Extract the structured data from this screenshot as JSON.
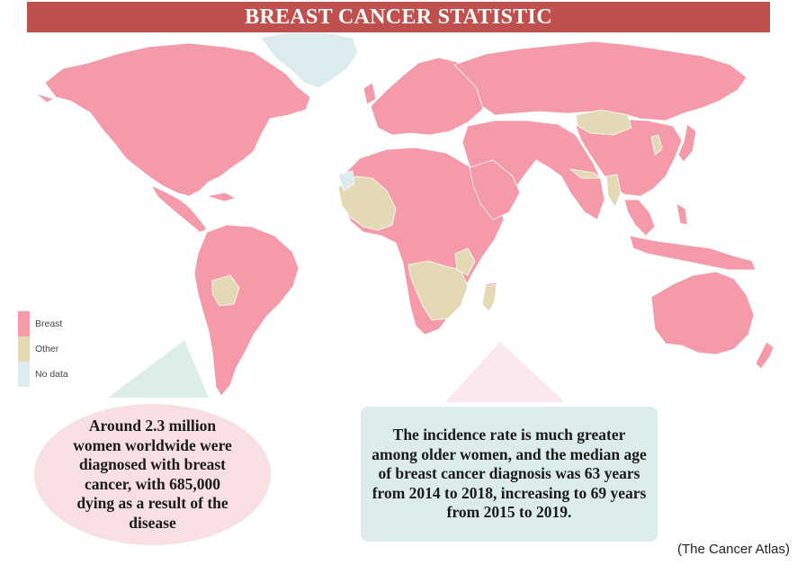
{
  "title": "BREAST CANCER STATISTIC",
  "colors": {
    "title_bar": "#c0504d",
    "breast": "#f49aa8",
    "other": "#e3d9b5",
    "no_data": "#dcebee",
    "left_callout": "#f8dfe2",
    "right_callout": "#dcecea"
  },
  "legend": [
    {
      "label": "Breast",
      "color": "#f49aa8"
    },
    {
      "label": "Other",
      "color": "#e3d9b5"
    },
    {
      "label": "No data",
      "color": "#dcebee"
    }
  ],
  "callout_left": "Around 2.3 million women worldwide were diagnosed with breast cancer, with 685,000 dying as a result of the disease",
  "callout_right": "The incidence rate is much greater among older women, and the median age of breast cancer diagnosis was 63 years from 2014 to 2018, increasing to 69 years from 2015 to 2019.",
  "source": "(The Cancer Atlas)"
}
